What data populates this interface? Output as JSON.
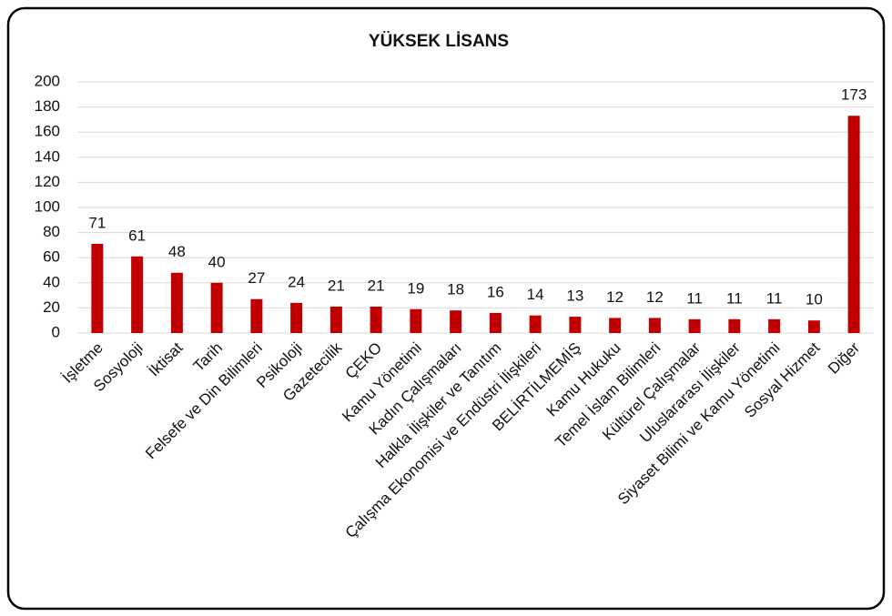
{
  "chart_data": {
    "type": "bar",
    "title": "YÜKSEK LİSANS",
    "categories": [
      "İşletme",
      "Sosyoloji",
      "İktisat",
      "Tarih",
      "Felsefe ve Din Bilimleri",
      "Psikoloji",
      "Gazetecilik",
      "ÇEKO",
      "Kamu Yönetimi",
      "Kadın Çalışmaları",
      "Halkla İlişkiler ve Tanıtım",
      "Çalışma Ekonomisi ve Endüstri İlişkileri",
      "BELİRTİLMEMİŞ",
      "Kamu Hukuku",
      "Temel İslam Bilimleri",
      "Kültürel Çalışmalar",
      "Uluslararası İlişkiler",
      "Siyaset Bilimi ve Kamu Yönetimi",
      "Sosyal Hizmet",
      "Diğer"
    ],
    "values": [
      71,
      61,
      48,
      40,
      27,
      24,
      21,
      21,
      19,
      18,
      16,
      14,
      13,
      12,
      12,
      11,
      11,
      11,
      10,
      173
    ],
    "color": "#c00000",
    "ylim": [
      0,
      200
    ],
    "yticks": [
      0,
      20,
      40,
      60,
      80,
      100,
      120,
      140,
      160,
      180,
      200
    ],
    "grid": true
  }
}
